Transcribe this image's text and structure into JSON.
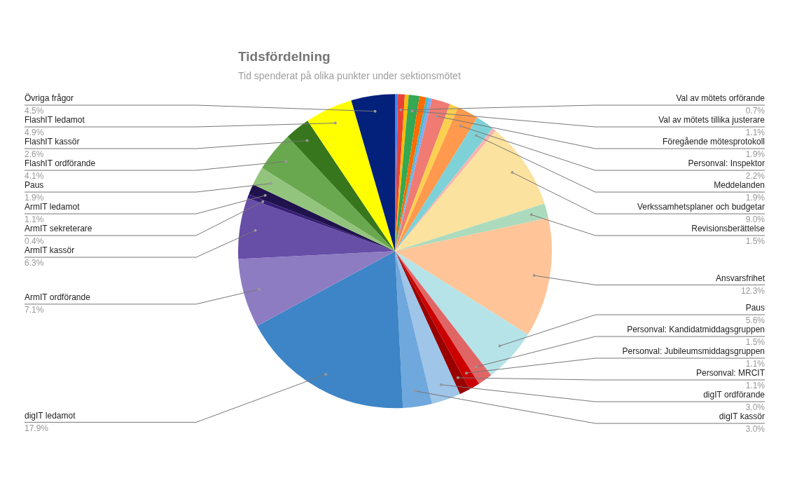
{
  "chart_data": {
    "type": "pie",
    "title": "Tidsfördelning",
    "subtitle": "Tid spenderat på olika punkter under sektionsmötet",
    "categories": [
      null,
      "Val av mötets orförande",
      null,
      "Val av mötets tillika justerare",
      null,
      null,
      null,
      "Föregående mötesprotokoll",
      null,
      "Personval: Inspektor",
      "Meddelanden",
      null,
      "Verkssamhetsplaner och budgetar",
      "Revisionsberättelse",
      "Ansvarsfrihet",
      "Paus",
      "Personval: Kandidatmiddagsgruppen",
      "Personval: Jubileumsmiddagsgruppen",
      "Personval: MRCIT",
      "digIT ordförande",
      "digIT kassör",
      "digIT ledamot",
      "ArmIT ordförande",
      "ArmIT kassör",
      "ArmIT sekreterare",
      "ArmIT ledamot",
      "Paus",
      "FlashIT ordförande",
      "FlashIT kassör",
      "FlashIT ledamot",
      "Övriga frågor"
    ],
    "values": [
      0.3,
      0.7,
      0.4,
      1.1,
      0.7,
      0.3,
      0.3,
      1.9,
      0.9,
      2.2,
      1.9,
      0.4,
      9.0,
      1.5,
      12.3,
      5.6,
      1.5,
      1.1,
      1.1,
      3.0,
      3.0,
      17.9,
      7.1,
      6.3,
      0.4,
      1.1,
      1.9,
      4.1,
      2.6,
      4.9,
      4.5
    ],
    "value_labels": [
      null,
      "0.7%",
      null,
      "1.1%",
      null,
      null,
      null,
      "1.9%",
      null,
      "2.2%",
      "1.9%",
      null,
      "9.0%",
      "1.5%",
      "12.3%",
      "5.6%",
      "1.5%",
      "1.1%",
      "1.1%",
      "3.0%",
      "3.0%",
      "17.9%",
      "7.1%",
      "6.3%",
      "0.4%",
      "1.1%",
      "1.9%",
      "4.1%",
      "2.6%",
      "4.9%",
      "4.5%"
    ],
    "colors": [
      "#4285f4",
      "#ea4335",
      "#fbbc04",
      "#34a853",
      "#ff6d01",
      "#46bdc6",
      "#7baaf7",
      "#f07b72",
      "#fcd04f",
      "#ff994d",
      "#7ed1d7",
      "#f7b4ae",
      "#fbe29f",
      "#abdbbc",
      "#ffc599",
      "#b5e3e8",
      "#e06666",
      "#cc0000",
      "#990000",
      "#9fc5e8",
      "#6fa8dc",
      "#3d85c6",
      "#8e7cc3",
      "#674ea7",
      "#351c75",
      "#20124d",
      "#93c47d",
      "#6aa84f",
      "#38761d",
      "#ffff00",
      "#03207a"
    ],
    "legend": false
  }
}
